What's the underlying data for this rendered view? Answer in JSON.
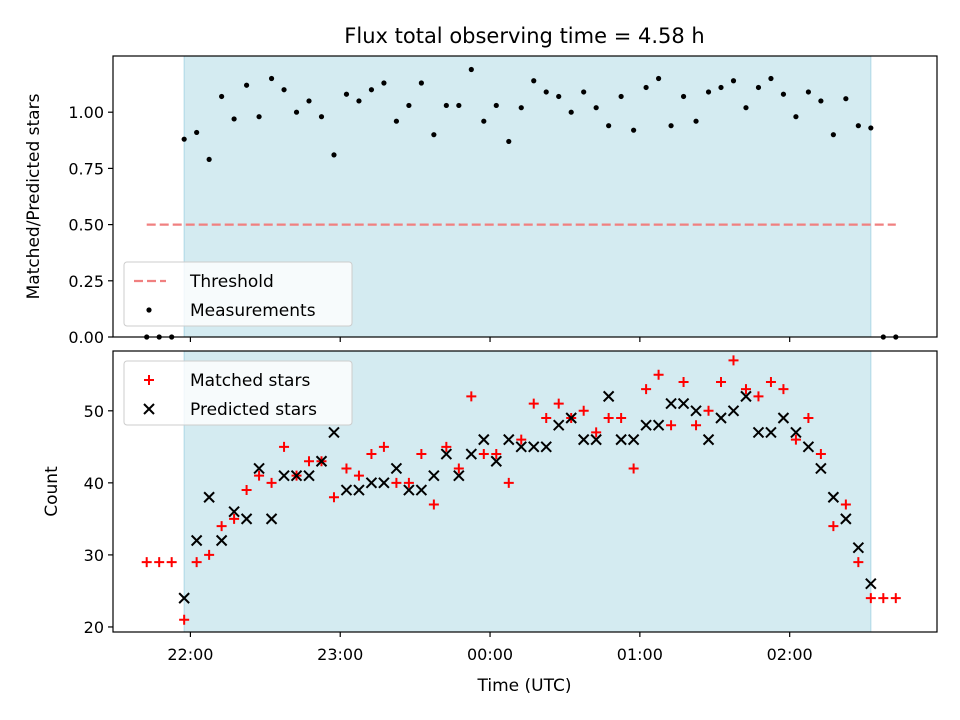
{
  "figure": {
    "title": "Flux total observing time = 4.58 h",
    "xlabel": "Time (UTC)",
    "x_ticks": [
      "22:00",
      "23:00",
      "00:00",
      "01:00",
      "02:00"
    ]
  },
  "colors": {
    "observing_band": "#d4ebf1",
    "threshold": "#f08080",
    "measurements": "#000000",
    "matched": "#ff0000",
    "predicted": "#000000"
  },
  "chart_data": [
    {
      "type": "scatter",
      "panel": "top",
      "title": "Flux total observing time = 4.58 h",
      "ylabel": "Matched/Predicted stars",
      "xlabel": "",
      "x_units": "minutes relative to 22:00 UTC",
      "xlim": [
        -31,
        299
      ],
      "ylim": [
        0,
        1.25
      ],
      "y_ticks": [
        "0.00",
        "0.25",
        "0.50",
        "0.75",
        "1.00"
      ],
      "y_tick_values": [
        0,
        0.25,
        0.5,
        0.75,
        1.0
      ],
      "observing_window": [
        -2.5,
        272.5
      ],
      "legend": {
        "placement": "lower-left",
        "entries": [
          "Threshold",
          "Measurements"
        ]
      },
      "threshold": {
        "name": "Threshold",
        "value": 0.5,
        "x_range": [
          -17.5,
          282.5
        ]
      },
      "series": [
        {
          "name": "Measurements",
          "x": [
            -17.5,
            -12.5,
            -7.5,
            -2.5,
            2.5,
            7.5,
            12.5,
            17.5,
            22.5,
            27.5,
            32.5,
            37.5,
            42.5,
            47.5,
            52.5,
            57.5,
            62.5,
            67.5,
            72.5,
            77.5,
            82.5,
            87.5,
            92.5,
            97.5,
            102.5,
            107.5,
            112.5,
            117.5,
            122.5,
            127.5,
            132.5,
            137.5,
            142.5,
            147.5,
            152.5,
            157.5,
            162.5,
            167.5,
            172.5,
            177.5,
            182.5,
            187.5,
            192.5,
            197.5,
            202.5,
            207.5,
            212.5,
            217.5,
            222.5,
            227.5,
            232.5,
            237.5,
            242.5,
            247.5,
            252.5,
            257.5,
            262.5,
            267.5,
            272.5,
            277.5,
            282.5
          ],
          "values": [
            0,
            0,
            0,
            0.88,
            0.91,
            0.79,
            1.07,
            0.97,
            1.12,
            0.98,
            1.15,
            1.1,
            1.0,
            1.05,
            0.98,
            0.81,
            1.08,
            1.05,
            1.1,
            1.13,
            0.96,
            1.03,
            1.13,
            0.9,
            1.03,
            1.03,
            1.19,
            0.96,
            1.03,
            0.87,
            1.02,
            1.14,
            1.09,
            1.07,
            1.0,
            1.09,
            1.02,
            0.94,
            1.07,
            0.92,
            1.11,
            1.15,
            0.94,
            1.07,
            0.96,
            1.09,
            1.11,
            1.14,
            1.02,
            1.11,
            1.15,
            1.08,
            0.98,
            1.09,
            1.05,
            0.9,
            1.06,
            0.94,
            0.93,
            0,
            0
          ]
        }
      ]
    },
    {
      "type": "scatter",
      "panel": "bottom",
      "title": "",
      "ylabel": "Count",
      "xlabel": "Time (UTC)",
      "x_units": "minutes relative to 22:00 UTC",
      "xlim": [
        -31,
        299
      ],
      "ylim": [
        19.3,
        58.3
      ],
      "y_ticks": [
        "20",
        "30",
        "40",
        "50"
      ],
      "y_tick_values": [
        20,
        30,
        40,
        50
      ],
      "observing_window": [
        -2.5,
        272.5
      ],
      "legend": {
        "placement": "upper-left",
        "entries": [
          "Matched stars",
          "Predicted stars"
        ]
      },
      "series": [
        {
          "name": "Matched stars",
          "marker": "plus",
          "x": [
            -17.5,
            -12.5,
            -7.5,
            -2.5,
            2.5,
            7.5,
            12.5,
            17.5,
            22.5,
            27.5,
            32.5,
            37.5,
            42.5,
            47.5,
            52.5,
            57.5,
            62.5,
            67.5,
            72.5,
            77.5,
            82.5,
            87.5,
            92.5,
            97.5,
            102.5,
            107.5,
            112.5,
            117.5,
            122.5,
            127.5,
            132.5,
            137.5,
            142.5,
            147.5,
            152.5,
            157.5,
            162.5,
            167.5,
            172.5,
            177.5,
            182.5,
            187.5,
            192.5,
            197.5,
            202.5,
            207.5,
            212.5,
            217.5,
            222.5,
            227.5,
            232.5,
            237.5,
            242.5,
            247.5,
            252.5,
            257.5,
            262.5,
            267.5,
            272.5,
            277.5,
            282.5
          ],
          "values": [
            29,
            29,
            29,
            21,
            29,
            30,
            34,
            35,
            39,
            41,
            40,
            45,
            41,
            43,
            43,
            38,
            42,
            41,
            44,
            45,
            40,
            40,
            44,
            37,
            45,
            42,
            52,
            44,
            44,
            40,
            46,
            51,
            49,
            51,
            49,
            50,
            47,
            49,
            49,
            42,
            53,
            55,
            48,
            54,
            48,
            50,
            54,
            57,
            53,
            52,
            54,
            53,
            46,
            49,
            44,
            34,
            37,
            29,
            24,
            24,
            24
          ]
        },
        {
          "name": "Predicted stars",
          "marker": "x",
          "x": [
            -2.5,
            2.5,
            7.5,
            12.5,
            17.5,
            22.5,
            27.5,
            32.5,
            37.5,
            42.5,
            47.5,
            52.5,
            57.5,
            62.5,
            67.5,
            72.5,
            77.5,
            82.5,
            87.5,
            92.5,
            97.5,
            102.5,
            107.5,
            112.5,
            117.5,
            122.5,
            127.5,
            132.5,
            137.5,
            142.5,
            147.5,
            152.5,
            157.5,
            162.5,
            167.5,
            172.5,
            177.5,
            182.5,
            187.5,
            192.5,
            197.5,
            202.5,
            207.5,
            212.5,
            217.5,
            222.5,
            227.5,
            232.5,
            237.5,
            242.5,
            247.5,
            252.5,
            257.5,
            262.5,
            267.5,
            272.5
          ],
          "values": [
            24,
            32,
            38,
            32,
            36,
            35,
            42,
            35,
            41,
            41,
            41,
            43,
            47,
            39,
            39,
            40,
            40,
            42,
            39,
            39,
            41,
            44,
            41,
            44,
            46,
            43,
            46,
            45,
            45,
            45,
            48,
            49,
            46,
            46,
            52,
            46,
            46,
            48,
            48,
            51,
            51,
            50,
            46,
            49,
            50,
            52,
            47,
            47,
            49,
            47,
            45,
            42,
            38,
            35,
            31,
            26
          ]
        }
      ]
    }
  ]
}
